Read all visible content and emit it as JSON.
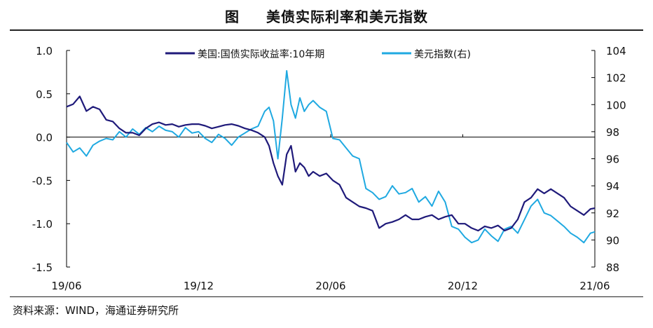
{
  "title_prefix": "图",
  "title": "美债实际利率和美元指数",
  "source": "资料来源：WIND，海通证券研究所",
  "chart_data": {
    "type": "line",
    "x_ticks": [
      "19/06",
      "19/12",
      "20/06",
      "20/12",
      "21/06"
    ],
    "x_tick_months": [
      0,
      6,
      12,
      18,
      24
    ],
    "left_axis": {
      "ylim": [
        -1.5,
        1.0
      ],
      "ticks": [
        "1.0",
        "0.5",
        "0.0",
        "-0.5",
        "-1.0",
        "-1.5"
      ],
      "tick_values": [
        1.0,
        0.5,
        0.0,
        -0.5,
        -1.0,
        -1.5
      ]
    },
    "right_axis": {
      "ylim": [
        88,
        104
      ],
      "ticks": [
        "104",
        "102",
        "100",
        "98",
        "96",
        "94",
        "92",
        "90",
        "88"
      ],
      "tick_values": [
        104,
        102,
        100,
        98,
        96,
        94,
        92,
        90,
        88
      ]
    },
    "series": [
      {
        "name": "美国:国债实际收益率:10年期",
        "axis": "left",
        "color": "#1f1a7a",
        "x_months": [
          0,
          0.3,
          0.6,
          0.9,
          1.2,
          1.5,
          1.8,
          2.1,
          2.4,
          2.7,
          3.0,
          3.3,
          3.6,
          3.9,
          4.2,
          4.5,
          4.8,
          5.1,
          5.4,
          5.7,
          6.0,
          6.3,
          6.6,
          6.9,
          7.2,
          7.5,
          7.8,
          8.1,
          8.4,
          8.7,
          9.0,
          9.2,
          9.4,
          9.6,
          9.8,
          10.0,
          10.2,
          10.4,
          10.6,
          10.8,
          11.0,
          11.2,
          11.5,
          11.8,
          12.1,
          12.4,
          12.7,
          13.0,
          13.3,
          13.6,
          13.9,
          14.2,
          14.5,
          14.8,
          15.1,
          15.4,
          15.7,
          16.0,
          16.3,
          16.6,
          16.9,
          17.2,
          17.5,
          17.8,
          18.1,
          18.4,
          18.7,
          19.0,
          19.3,
          19.6,
          19.9,
          20.2,
          20.5,
          20.8,
          21.1,
          21.4,
          21.7,
          22.0,
          22.3,
          22.6,
          22.9,
          23.2,
          23.5,
          23.8,
          24.0
        ],
        "values": [
          0.35,
          0.38,
          0.47,
          0.3,
          0.35,
          0.32,
          0.2,
          0.18,
          0.1,
          0.05,
          0.05,
          0.02,
          0.1,
          0.15,
          0.17,
          0.14,
          0.15,
          0.12,
          0.14,
          0.15,
          0.15,
          0.13,
          0.1,
          0.12,
          0.14,
          0.15,
          0.13,
          0.1,
          0.08,
          0.05,
          0.0,
          -0.1,
          -0.3,
          -0.45,
          -0.55,
          -0.2,
          -0.1,
          -0.4,
          -0.3,
          -0.35,
          -0.45,
          -0.4,
          -0.45,
          -0.42,
          -0.5,
          -0.55,
          -0.7,
          -0.75,
          -0.8,
          -0.82,
          -0.85,
          -1.05,
          -1.0,
          -0.98,
          -0.95,
          -0.9,
          -0.95,
          -0.95,
          -0.92,
          -0.9,
          -0.95,
          -0.92,
          -0.9,
          -1.0,
          -1.0,
          -1.05,
          -1.08,
          -1.03,
          -1.05,
          -1.02,
          -1.08,
          -1.05,
          -0.95,
          -0.75,
          -0.7,
          -0.6,
          -0.65,
          -0.6,
          -0.65,
          -0.7,
          -0.8,
          -0.85,
          -0.9,
          -0.83,
          -0.82
        ]
      },
      {
        "name": "美元指数(右)",
        "axis": "right",
        "color": "#1fa9e1",
        "x_months": [
          0,
          0.3,
          0.6,
          0.9,
          1.2,
          1.5,
          1.8,
          2.1,
          2.4,
          2.7,
          3.0,
          3.3,
          3.6,
          3.9,
          4.2,
          4.5,
          4.8,
          5.1,
          5.4,
          5.7,
          6.0,
          6.3,
          6.6,
          6.9,
          7.2,
          7.5,
          7.8,
          8.1,
          8.4,
          8.7,
          9.0,
          9.2,
          9.4,
          9.6,
          9.8,
          10.0,
          10.2,
          10.4,
          10.6,
          10.8,
          11.0,
          11.2,
          11.5,
          11.8,
          12.1,
          12.4,
          12.7,
          13.0,
          13.3,
          13.6,
          13.9,
          14.2,
          14.5,
          14.8,
          15.1,
          15.4,
          15.7,
          16.0,
          16.3,
          16.6,
          16.9,
          17.2,
          17.5,
          17.8,
          18.1,
          18.4,
          18.7,
          19.0,
          19.3,
          19.6,
          19.9,
          20.2,
          20.5,
          20.8,
          21.1,
          21.4,
          21.7,
          22.0,
          22.3,
          22.6,
          22.9,
          23.2,
          23.5,
          23.8,
          24.0
        ],
        "values": [
          97.2,
          96.5,
          96.8,
          96.2,
          97.0,
          97.3,
          97.5,
          97.4,
          98.0,
          97.6,
          98.2,
          97.8,
          98.3,
          98.0,
          98.4,
          98.1,
          98.0,
          97.6,
          98.3,
          97.9,
          98.0,
          97.5,
          97.2,
          97.8,
          97.5,
          97.0,
          97.6,
          97.9,
          98.2,
          98.4,
          99.5,
          99.8,
          98.8,
          96.0,
          99.0,
          102.5,
          100.0,
          99.0,
          100.5,
          99.5,
          100.0,
          100.3,
          99.8,
          99.5,
          97.5,
          97.4,
          96.8,
          96.2,
          96.0,
          93.8,
          93.5,
          93.0,
          93.2,
          94.0,
          93.4,
          93.5,
          93.8,
          92.8,
          93.2,
          92.5,
          93.6,
          92.8,
          91.0,
          90.8,
          90.2,
          89.8,
          90.0,
          90.8,
          90.3,
          89.9,
          90.8,
          91.0,
          90.5,
          91.5,
          92.5,
          93.0,
          92.0,
          91.8,
          91.4,
          91.0,
          90.5,
          90.2,
          89.8,
          90.5,
          90.6
        ]
      }
    ]
  }
}
